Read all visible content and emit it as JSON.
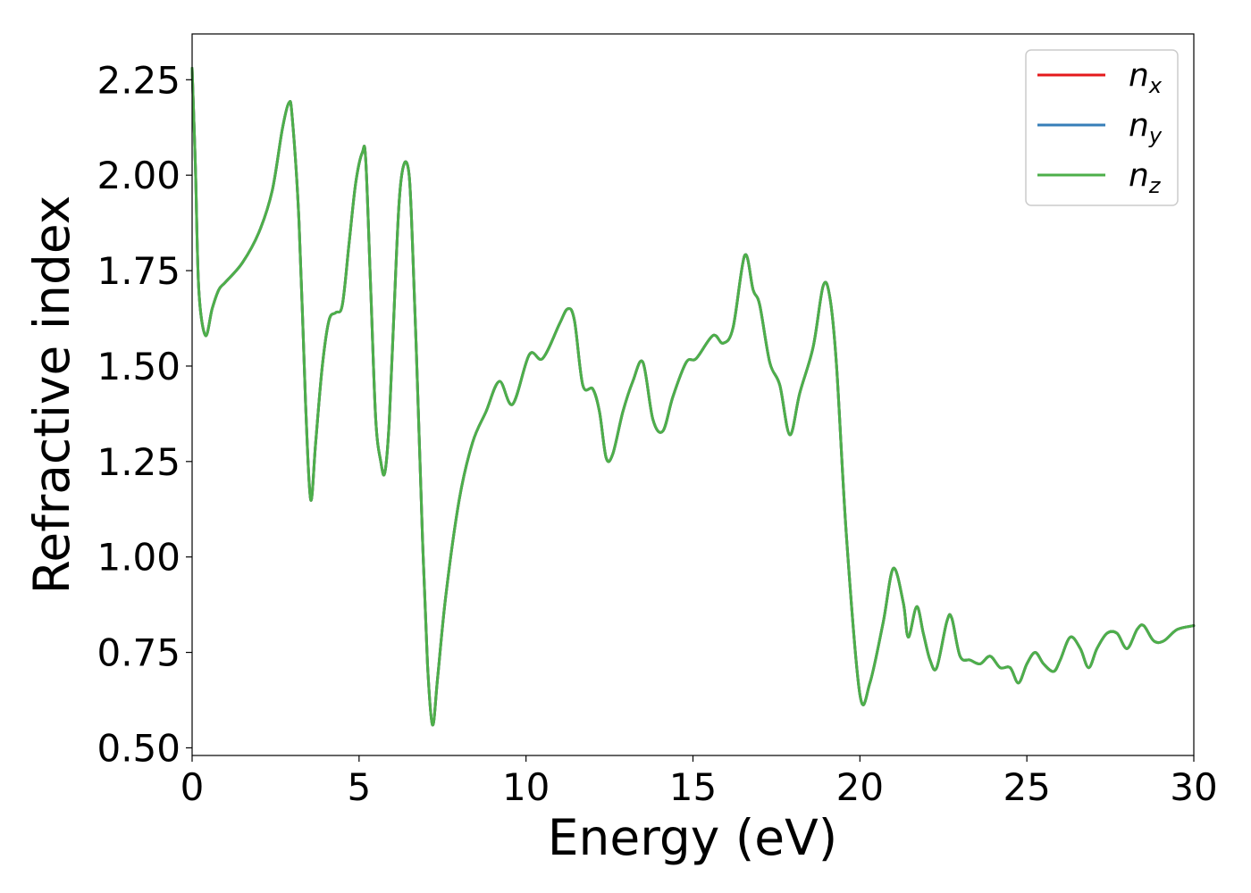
{
  "chart_data": {
    "type": "line",
    "xlabel": "Energy (eV)",
    "ylabel": "Refractive index",
    "xlim": [
      0,
      30
    ],
    "ylim": [
      0.48,
      2.37
    ],
    "x_ticks": [
      0,
      5,
      10,
      15,
      20,
      25,
      30
    ],
    "x_tick_labels": [
      "0",
      "5",
      "10",
      "15",
      "20",
      "25",
      "30"
    ],
    "y_ticks": [
      0.5,
      0.75,
      1.0,
      1.25,
      1.5,
      1.75,
      2.0,
      2.25
    ],
    "y_tick_labels": [
      "0.50",
      "0.75",
      "1.00",
      "1.25",
      "1.50",
      "1.75",
      "2.00",
      "2.25"
    ],
    "grid": false,
    "legend_position": "top-right",
    "series": [
      {
        "name": "n",
        "subscript": "x",
        "color": "#e41a1c"
      },
      {
        "name": "n",
        "subscript": "y",
        "color": "#377eb8"
      },
      {
        "name": "n",
        "subscript": "z",
        "color": "#4daf4a"
      }
    ],
    "series_note": "all three series coincide; values shared",
    "x": [
      0,
      0.1,
      0.2,
      0.4,
      0.6,
      0.8,
      1.0,
      1.5,
      2.0,
      2.4,
      2.7,
      2.9,
      3.0,
      3.2,
      3.4,
      3.55,
      3.7,
      3.9,
      4.1,
      4.3,
      4.5,
      4.7,
      4.9,
      5.1,
      5.2,
      5.35,
      5.5,
      5.65,
      5.77,
      5.9,
      6.05,
      6.2,
      6.35,
      6.5,
      6.6,
      6.75,
      6.9,
      7.05,
      7.2,
      7.35,
      7.6,
      8.0,
      8.4,
      8.8,
      9.2,
      9.6,
      10.1,
      10.5,
      11.0,
      11.25,
      11.45,
      11.7,
      12.0,
      12.2,
      12.4,
      12.6,
      12.9,
      13.2,
      13.5,
      13.8,
      14.1,
      14.4,
      14.8,
      15.1,
      15.6,
      15.9,
      16.2,
      16.55,
      16.8,
      17.0,
      17.3,
      17.6,
      17.9,
      18.2,
      18.6,
      18.9,
      19.1,
      19.3,
      19.6,
      20.0,
      20.3,
      20.7,
      21.0,
      21.3,
      21.45,
      21.7,
      21.9,
      22.1,
      22.3,
      22.6,
      22.75,
      23.0,
      23.3,
      23.6,
      23.9,
      24.2,
      24.5,
      24.75,
      25.0,
      25.25,
      25.5,
      25.8,
      26.0,
      26.3,
      26.6,
      26.85,
      27.1,
      27.4,
      27.7,
      28.0,
      28.3,
      28.5,
      28.8,
      29.1,
      29.5,
      30.0
    ],
    "values": [
      2.28,
      2.02,
      1.7,
      1.58,
      1.65,
      1.7,
      1.72,
      1.77,
      1.85,
      1.96,
      2.12,
      2.19,
      2.15,
      1.88,
      1.4,
      1.15,
      1.3,
      1.5,
      1.62,
      1.64,
      1.66,
      1.82,
      1.98,
      2.06,
      2.04,
      1.7,
      1.36,
      1.25,
      1.22,
      1.35,
      1.65,
      1.93,
      2.03,
      2.0,
      1.82,
      1.45,
      1.05,
      0.72,
      0.56,
      0.68,
      0.9,
      1.15,
      1.3,
      1.38,
      1.46,
      1.4,
      1.53,
      1.52,
      1.61,
      1.65,
      1.62,
      1.45,
      1.44,
      1.38,
      1.26,
      1.27,
      1.38,
      1.46,
      1.51,
      1.36,
      1.33,
      1.42,
      1.51,
      1.52,
      1.58,
      1.56,
      1.6,
      1.79,
      1.7,
      1.66,
      1.51,
      1.45,
      1.32,
      1.43,
      1.55,
      1.71,
      1.68,
      1.5,
      1.05,
      0.64,
      0.67,
      0.83,
      0.97,
      0.88,
      0.79,
      0.87,
      0.8,
      0.73,
      0.71,
      0.83,
      0.84,
      0.74,
      0.73,
      0.72,
      0.74,
      0.71,
      0.71,
      0.67,
      0.72,
      0.75,
      0.72,
      0.7,
      0.73,
      0.79,
      0.76,
      0.71,
      0.76,
      0.8,
      0.8,
      0.76,
      0.81,
      0.82,
      0.78,
      0.78,
      0.81,
      0.82
    ]
  }
}
